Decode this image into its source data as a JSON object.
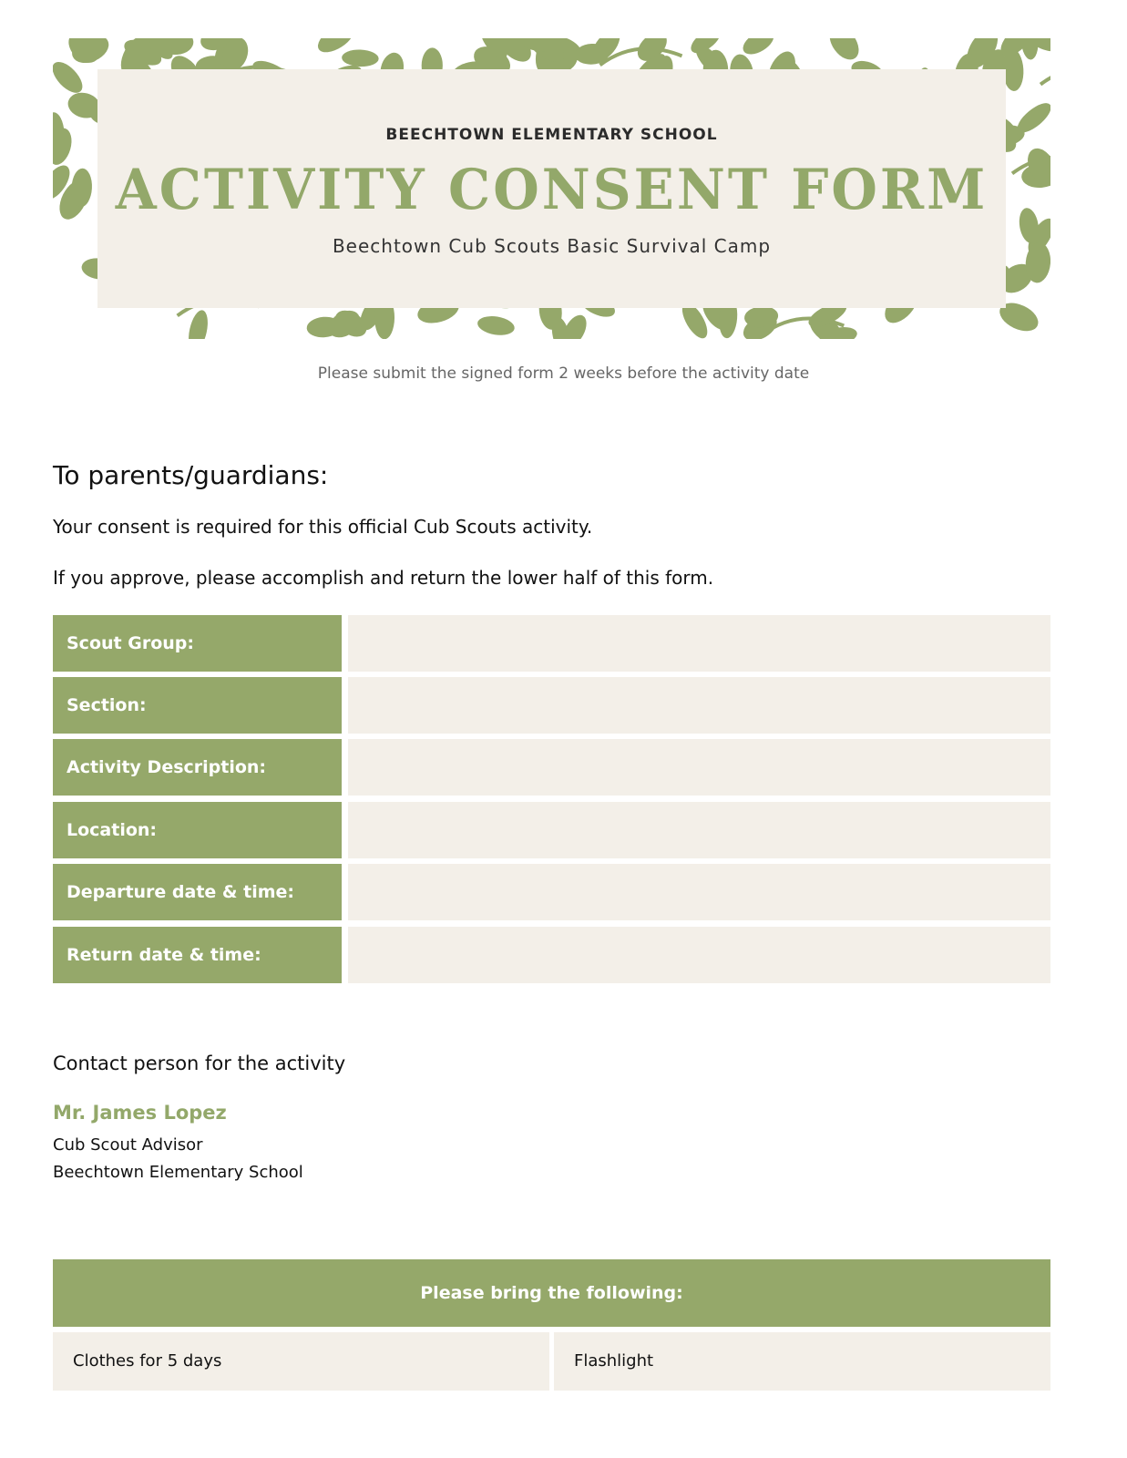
{
  "header": {
    "school": "BEECHTOWN ELEMENTARY SCHOOL",
    "title": "ACTIVITY CONSENT FORM",
    "subtitle": "Beechtown Cub Scouts Basic Survival Camp"
  },
  "note": "Please submit the signed form 2 weeks before the activity date",
  "intro": {
    "greeting": "To parents/guardians:",
    "line1": "Your consent is required for this official Cub Scouts activity.",
    "line2": "If you approve, please accomplish and return the lower half of this form."
  },
  "fields": [
    {
      "label": "Scout Group:",
      "value": ""
    },
    {
      "label": "Section:",
      "value": ""
    },
    {
      "label": "Activity Description:",
      "value": ""
    },
    {
      "label": "Location:",
      "value": ""
    },
    {
      "label": "Departure date & time:",
      "value": ""
    },
    {
      "label": "Return date & time:",
      "value": ""
    }
  ],
  "contact": {
    "heading": "Contact person for the activity",
    "name": "Mr. James Lopez",
    "role": "Cub Scout Advisor",
    "org": "Beechtown Elementary School"
  },
  "bring": {
    "heading": "Please bring the following:",
    "items": [
      "Clothes for 5 days",
      "Flashlight"
    ]
  },
  "colors": {
    "accent": "#95a86a",
    "panel": "#f3efe8"
  }
}
